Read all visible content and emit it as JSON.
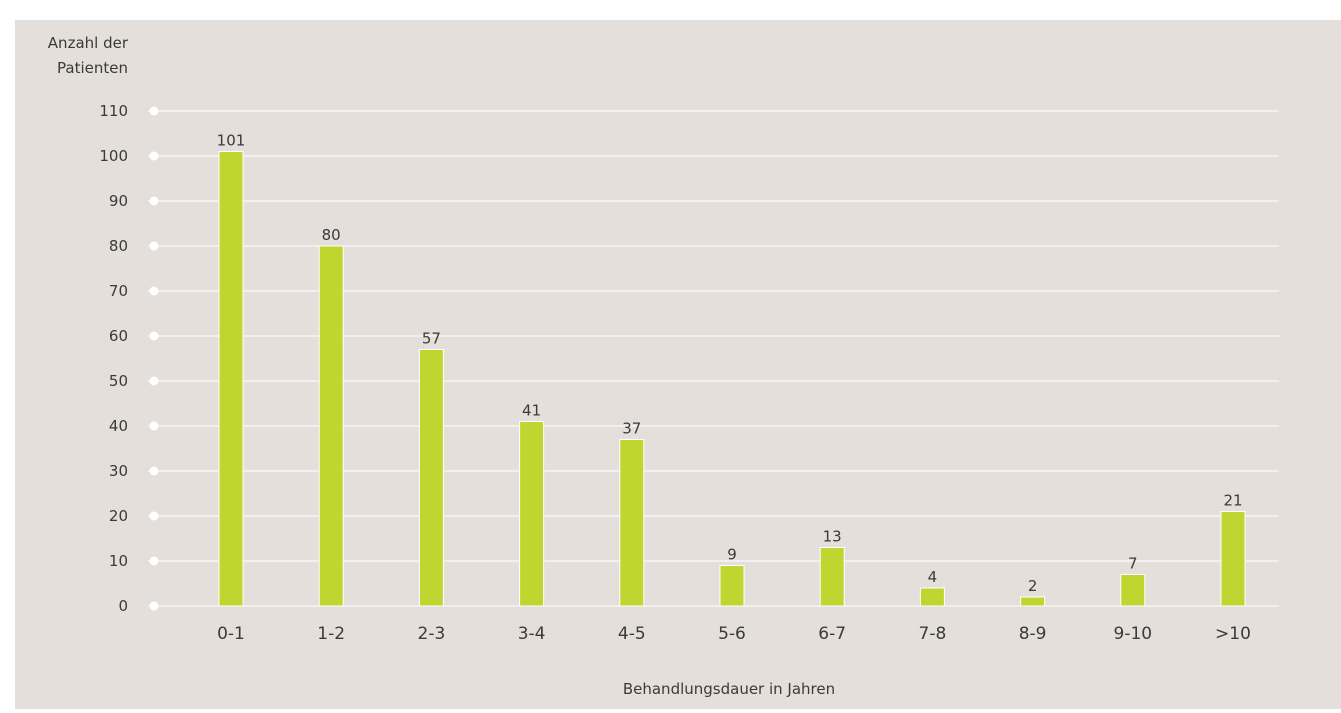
{
  "colors": {
    "panel_background": "#e4dfda",
    "bar": "#bfd631",
    "gridline": "#ffffff",
    "text": "#3a3a3a"
  },
  "chart_data": {
    "type": "bar",
    "title": "",
    "ylabel_lines": [
      "Anzahl der",
      "Patienten"
    ],
    "xlabel": "Behandlungsdauer in Jahren",
    "categories": [
      "0-1",
      "1-2",
      "2-3",
      "3-4",
      "4-5",
      "5-6",
      "6-7",
      "7-8",
      "8-9",
      "9-10",
      ">10"
    ],
    "values": [
      101,
      80,
      57,
      41,
      37,
      9,
      13,
      4,
      2,
      7,
      21
    ],
    "ylim": [
      0,
      110
    ],
    "yticks": [
      0,
      10,
      20,
      30,
      40,
      50,
      60,
      70,
      80,
      90,
      100,
      110
    ],
    "grid": true,
    "data_labels": true
  }
}
